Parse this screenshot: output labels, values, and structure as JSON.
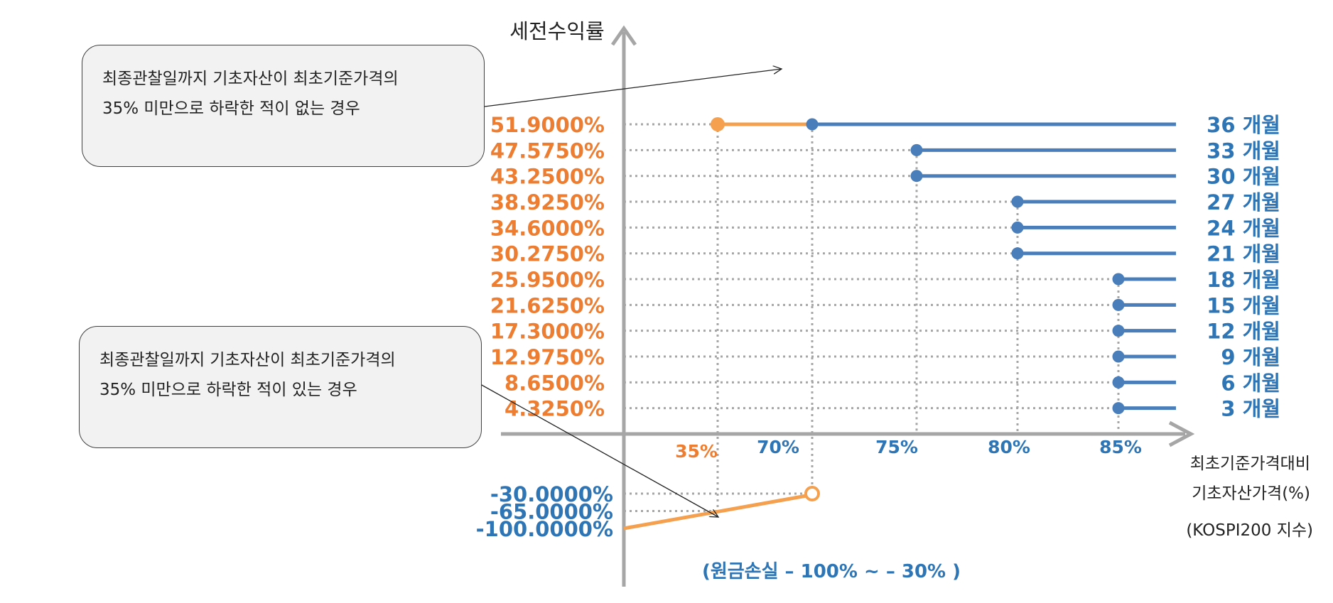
{
  "chart_data": {
    "type": "line",
    "ylabel": "세전수익률",
    "xlabel_lines": [
      "최초기준가격대비",
      "기초자산가격(%)",
      "(KOSPI200 지수)"
    ],
    "x_tick_labels": [
      "35%",
      "70%",
      "75%",
      "80%",
      "85%"
    ],
    "x_tick_colors": [
      "#ed7d31",
      "#2e75b6",
      "#2e75b6",
      "#2e75b6",
      "#2e75b6"
    ],
    "positive_y_labels": [
      "51.9000%",
      "47.5750%",
      "43.2500%",
      "38.9250%",
      "34.6000%",
      "30.2750%",
      "25.9500%",
      "21.6250%",
      "17.3000%",
      "12.9750%",
      "8.6500%",
      "4.3250%"
    ],
    "negative_y_labels": [
      "-30.0000%",
      "-65.0000%",
      "-100.0000%"
    ],
    "series": [
      {
        "name": "36 개월",
        "return_pct": 51.9,
        "barrier_pct": 70
      },
      {
        "name": "33 개월",
        "return_pct": 47.575,
        "barrier_pct": 75
      },
      {
        "name": "30 개월",
        "return_pct": 43.25,
        "barrier_pct": 75
      },
      {
        "name": "27 개월",
        "return_pct": 38.925,
        "barrier_pct": 80
      },
      {
        "name": "24 개월",
        "return_pct": 34.6,
        "barrier_pct": 80
      },
      {
        "name": "21 개월",
        "return_pct": 30.275,
        "barrier_pct": 80
      },
      {
        "name": "18 개월",
        "return_pct": 25.95,
        "barrier_pct": 85
      },
      {
        "name": "15 개월",
        "return_pct": 21.625,
        "barrier_pct": 85
      },
      {
        "name": "12 개월",
        "return_pct": 17.3,
        "barrier_pct": 85
      },
      {
        "name": "9 개월",
        "return_pct": 12.975,
        "barrier_pct": 85
      },
      {
        "name": "6 개월",
        "return_pct": 8.65,
        "barrier_pct": 85
      },
      {
        "name": "3 개월",
        "return_pct": 4.325,
        "barrier_pct": 85
      }
    ],
    "no_knock_in_segment": {
      "from_pct": 35,
      "to_pct": 70,
      "return_pct": 51.9
    },
    "knock_in_line": {
      "start": {
        "x_pct": 0,
        "return_pct": -100
      },
      "end": {
        "x_pct": 70,
        "return_pct": -30
      }
    },
    "loss_range_label": "(원금손실 – 100% ~ – 30% )",
    "colors": {
      "orange": "#ed7d31",
      "orange_line": "#f4a04f",
      "blue": "#2e75b6",
      "line_blue": "#4a7ebb",
      "axis": "#a6a6a6",
      "grid": "#a6a6a6"
    }
  },
  "callouts": [
    {
      "lines": [
        "최종관찰일까지 기초자산이 최초기준가격의",
        "35% 미만으로 하락한 적이 없는 경우"
      ]
    },
    {
      "lines": [
        "최종관찰일까지 기초자산이 최초기준가격의",
        "35% 미만으로 하락한 적이 있는 경우"
      ]
    }
  ]
}
